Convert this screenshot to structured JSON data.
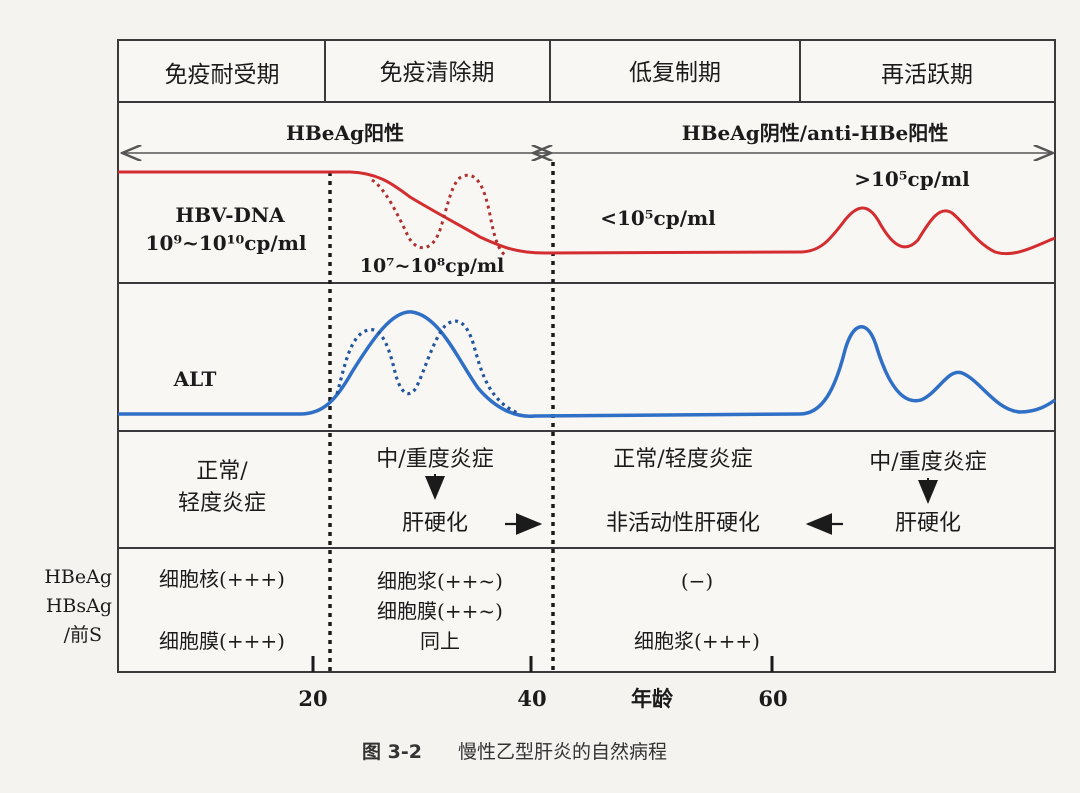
{
  "phases": [
    "免疫耐受期",
    "免疫清除期",
    "低复制期",
    "再活跃期"
  ],
  "serology": {
    "left": "HBeAg阳性",
    "right": "HBeAg阴性/anti-HBe阳性"
  },
  "hbv": {
    "label_line1": "HBV-DNA",
    "label_line2": "10⁹~10¹⁰cp/ml",
    "mid_label": "10⁷~10⁸cp/ml",
    "low_label": "<10⁵cp/ml",
    "high_label": ">10⁵cp/ml"
  },
  "alt": {
    "label": "ALT"
  },
  "pathology": {
    "c1_line1": "正常/",
    "c1_line2": "轻度炎症",
    "c2_top": "中/重度炎症",
    "c2_bottom": "肝硬化",
    "c3_top": "正常/轻度炎症",
    "c3_bottom": "非活动性肝硬化",
    "c4_top": "中/重度炎症",
    "c4_bottom": "肝硬化"
  },
  "antigen": {
    "side1": "HBeAg",
    "side2": "HBsAg",
    "side3": "/前S",
    "c1_row1": "细胞核(+++)",
    "c1_row2": "细胞膜(+++)",
    "c2_row1": "细胞浆(++~)",
    "c2_row2": "细胞膜(++~)",
    "c2_row3": "同上",
    "c3_row1": "(−)",
    "c3_row2": "细胞浆(+++)"
  },
  "axis": {
    "ticks": [
      "20",
      "40",
      "60"
    ],
    "label": "年龄"
  },
  "caption": {
    "num": "图 3-2",
    "text": "慢性乙型肝炎的自然病程"
  },
  "colors": {
    "hbv_curve": "#d42d2f",
    "alt_curve": "#2f6fc6",
    "grid": "#3a3a3a"
  }
}
